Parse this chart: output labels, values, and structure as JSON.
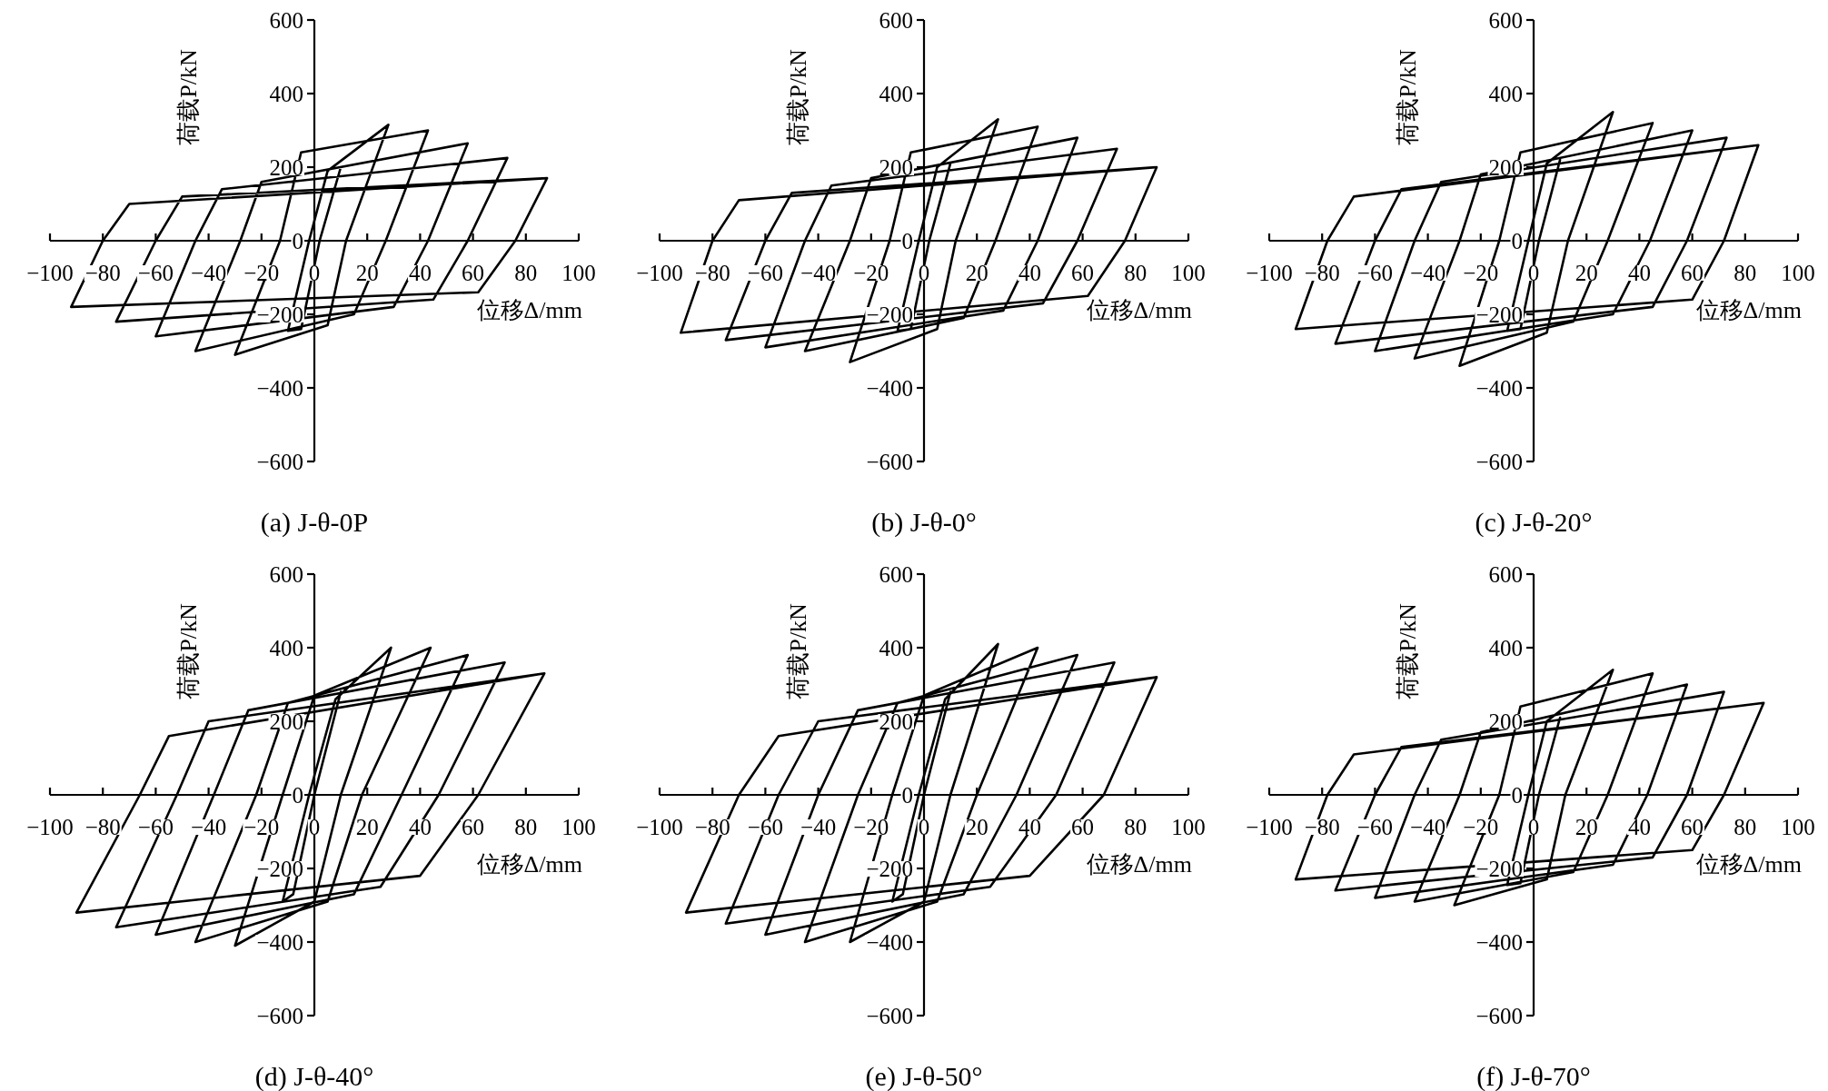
{
  "chart_data": [
    {
      "type": "line",
      "title": "(a) J-θ-0P",
      "xlabel": "位移Δ/mm",
      "ylabel": "荷载P/kN",
      "color": "#000000",
      "xlim": [
        -100,
        100
      ],
      "ylim": [
        -600,
        600
      ],
      "xticks": [
        -100,
        -80,
        -60,
        -40,
        -20,
        0,
        20,
        40,
        60,
        80,
        100
      ],
      "yticks": [
        -600,
        -400,
        -200,
        0,
        200,
        400,
        600
      ],
      "x": [
        10,
        2,
        -5,
        -10,
        -2,
        5,
        28,
        12,
        5,
        -30,
        -13,
        -5,
        43,
        27,
        15,
        -45,
        -28,
        -20,
        58,
        43,
        30,
        -60,
        -45,
        -35,
        73,
        58,
        45,
        -75,
        -60,
        -50,
        88,
        76,
        62,
        -92,
        -80,
        -70,
        88
      ],
      "values": [
        200,
        0,
        -240,
        -245,
        0,
        190,
        315,
        0,
        -230,
        -310,
        0,
        240,
        300,
        0,
        -200,
        -300,
        0,
        160,
        265,
        0,
        -180,
        -260,
        0,
        140,
        225,
        0,
        -160,
        -220,
        0,
        120,
        170,
        0,
        -140,
        -180,
        0,
        100,
        170
      ]
    },
    {
      "type": "line",
      "title": "(b) J-θ-0°",
      "xlabel": "位移Δ/mm",
      "ylabel": "荷载P/kN",
      "color": "#000000",
      "xlim": [
        -100,
        100
      ],
      "ylim": [
        -600,
        600
      ],
      "xticks": [
        -100,
        -80,
        -60,
        -40,
        -20,
        0,
        20,
        40,
        60,
        80,
        100
      ],
      "yticks": [
        -600,
        -400,
        -200,
        0,
        200,
        400,
        600
      ],
      "x": [
        10,
        2,
        -5,
        -10,
        -2,
        5,
        28,
        12,
        5,
        -28,
        -13,
        -5,
        43,
        27,
        15,
        -45,
        -28,
        -20,
        58,
        43,
        30,
        -60,
        -45,
        -35,
        73,
        58,
        45,
        -75,
        -60,
        -50,
        88,
        76,
        62,
        -92,
        -80,
        -70,
        88
      ],
      "values": [
        210,
        0,
        -240,
        -245,
        0,
        200,
        330,
        0,
        -240,
        -330,
        0,
        240,
        310,
        0,
        -210,
        -300,
        0,
        170,
        280,
        0,
        -190,
        -290,
        0,
        150,
        250,
        0,
        -170,
        -270,
        0,
        130,
        200,
        0,
        -150,
        -250,
        0,
        110,
        200
      ]
    },
    {
      "type": "line",
      "title": "(c) J-θ-20°",
      "xlabel": "位移Δ/mm",
      "ylabel": "荷载P/kN",
      "color": "#000000",
      "xlim": [
        -100,
        100
      ],
      "ylim": [
        -600,
        600
      ],
      "xticks": [
        -100,
        -80,
        -60,
        -40,
        -20,
        0,
        20,
        40,
        60,
        80,
        100
      ],
      "yticks": [
        -600,
        -400,
        -200,
        0,
        200,
        400,
        600
      ],
      "x": [
        10,
        2,
        -5,
        -10,
        -2,
        5,
        30,
        13,
        5,
        -28,
        -13,
        -5,
        45,
        28,
        15,
        -45,
        -28,
        -20,
        60,
        44,
        30,
        -60,
        -45,
        -35,
        73,
        58,
        45,
        -75,
        -60,
        -50,
        85,
        72,
        60,
        -90,
        -78,
        -68,
        85
      ],
      "values": [
        220,
        0,
        -240,
        -245,
        0,
        210,
        350,
        0,
        -250,
        -340,
        0,
        240,
        320,
        0,
        -220,
        -320,
        0,
        180,
        300,
        0,
        -200,
        -300,
        0,
        160,
        280,
        0,
        -180,
        -280,
        0,
        140,
        260,
        0,
        -160,
        -240,
        0,
        120,
        260
      ]
    },
    {
      "type": "line",
      "title": "(d) J-θ-40°",
      "xlabel": "位移Δ/mm",
      "ylabel": "荷载P/kN",
      "color": "#000000",
      "xlim": [
        -100,
        100
      ],
      "ylim": [
        -600,
        600
      ],
      "xticks": [
        -100,
        -80,
        -60,
        -40,
        -20,
        0,
        20,
        40,
        60,
        80,
        100
      ],
      "yticks": [
        -600,
        -400,
        -200,
        0,
        200,
        400,
        600
      ],
      "x": [
        10,
        0,
        -8,
        -12,
        -2,
        8,
        29,
        10,
        0,
        -30,
        -12,
        0,
        44,
        18,
        5,
        -45,
        -22,
        -10,
        58,
        33,
        15,
        -60,
        -38,
        -25,
        72,
        47,
        25,
        -75,
        -52,
        -40,
        87,
        62,
        40,
        -90,
        -66,
        -55,
        87
      ],
      "values": [
        280,
        0,
        -270,
        -290,
        0,
        260,
        400,
        0,
        -290,
        -410,
        0,
        270,
        400,
        0,
        -290,
        -400,
        0,
        250,
        380,
        0,
        -270,
        -380,
        0,
        230,
        360,
        0,
        -250,
        -360,
        0,
        200,
        330,
        0,
        -220,
        -320,
        0,
        160,
        330
      ]
    },
    {
      "type": "line",
      "title": "(e) J-θ-50°",
      "xlabel": "位移Δ/mm",
      "ylabel": "荷载P/kN",
      "color": "#000000",
      "xlim": [
        -100,
        100
      ],
      "ylim": [
        -600,
        600
      ],
      "xticks": [
        -100,
        -80,
        -60,
        -40,
        -20,
        0,
        20,
        40,
        60,
        80,
        100
      ],
      "yticks": [
        -600,
        -400,
        -200,
        0,
        200,
        400,
        600
      ],
      "x": [
        10,
        0,
        -8,
        -12,
        -2,
        8,
        28,
        10,
        0,
        -28,
        -12,
        0,
        43,
        20,
        5,
        -45,
        -25,
        -10,
        58,
        35,
        15,
        -60,
        -40,
        -25,
        72,
        50,
        25,
        -75,
        -55,
        -40,
        88,
        68,
        40,
        -90,
        -70,
        -55,
        88
      ],
      "values": [
        280,
        0,
        -270,
        -290,
        0,
        260,
        410,
        0,
        -290,
        -400,
        0,
        270,
        400,
        0,
        -290,
        -400,
        0,
        250,
        380,
        0,
        -270,
        -380,
        0,
        230,
        360,
        0,
        -250,
        -350,
        0,
        200,
        320,
        0,
        -220,
        -320,
        0,
        160,
        320
      ]
    },
    {
      "type": "line",
      "title": "(f) J-θ-70°",
      "xlabel": "位移Δ/mm",
      "ylabel": "荷载P/kN",
      "color": "#000000",
      "xlim": [
        -100,
        100
      ],
      "ylim": [
        -600,
        600
      ],
      "xticks": [
        -100,
        -80,
        -60,
        -40,
        -20,
        0,
        20,
        40,
        60,
        80,
        100
      ],
      "yticks": [
        -600,
        -400,
        -200,
        0,
        200,
        400,
        600
      ],
      "x": [
        10,
        2,
        -5,
        -10,
        -2,
        5,
        30,
        12,
        5,
        -30,
        -13,
        -5,
        45,
        28,
        15,
        -45,
        -28,
        -20,
        58,
        43,
        30,
        -60,
        -45,
        -35,
        72,
        58,
        45,
        -75,
        -60,
        -50,
        87,
        72,
        60,
        -90,
        -78,
        -68,
        87
      ],
      "values": [
        210,
        0,
        -240,
        -245,
        0,
        200,
        340,
        0,
        -230,
        -300,
        0,
        240,
        330,
        0,
        -210,
        -290,
        0,
        170,
        300,
        0,
        -190,
        -280,
        0,
        150,
        280,
        0,
        -170,
        -260,
        0,
        130,
        250,
        0,
        -150,
        -230,
        0,
        110,
        250
      ]
    }
  ]
}
